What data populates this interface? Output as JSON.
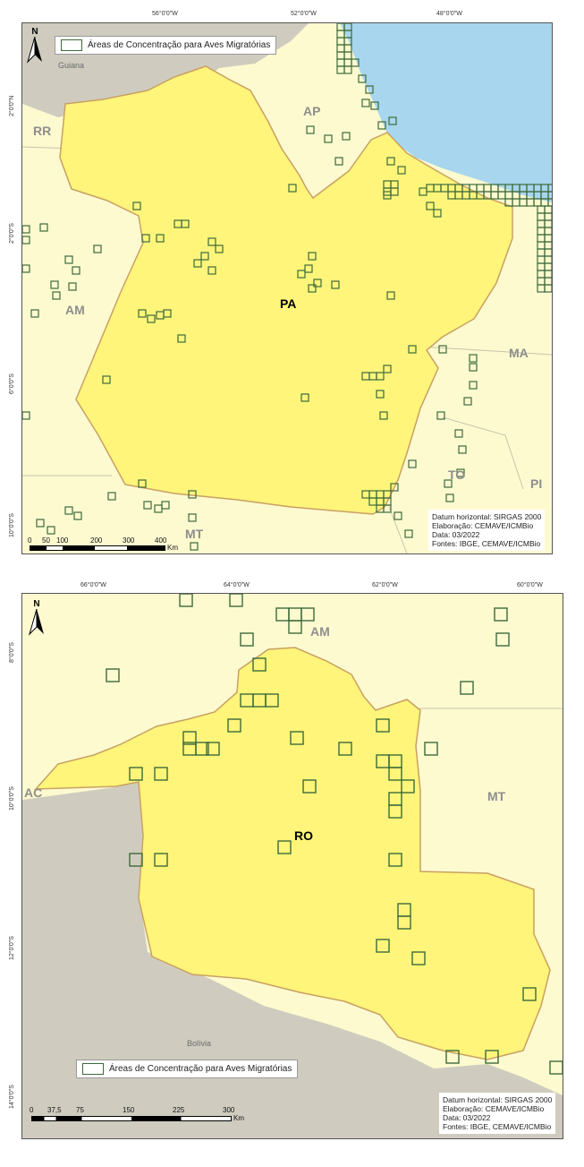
{
  "map1": {
    "ticks_top": [
      "56°0'0\"W",
      "52°0'0\"W",
      "48°0'0\"W"
    ],
    "ticks_left": [
      "2°0'0\"N",
      "2°0'0\"S",
      "6°0'0\"S",
      "10°0'0\"S"
    ],
    "legend_label": "Áreas de Concentração para Aves Migratórias",
    "labels": {
      "guiana": "Guiana",
      "rr": "RR",
      "ap": "AP",
      "am": "AM",
      "pa": "PA",
      "ma": "MA",
      "to": "TO",
      "pi": "PI",
      "mt": "MT"
    },
    "info": [
      "Datum horizontal: SIRGAS 2000",
      "Elaboração: CEMAVE/ICMBio",
      "Data: 03/2022",
      "Fontes: IBGE, CEMAVE/ICMBio"
    ],
    "scale_labels": [
      "0",
      "50",
      "100",
      "200",
      "300",
      "400"
    ],
    "scale_unit": "Km",
    "north": "N"
  },
  "map2": {
    "ticks_top": [
      "66°0'0\"W",
      "64°0'0\"W",
      "62°0'0\"W",
      "60°0'0\"W"
    ],
    "ticks_left": [
      "8°0'0\"S",
      "10°0'0\"S",
      "12°0'0\"S",
      "14°0'0\"S"
    ],
    "legend_label": "Áreas de Concentração para Aves Migratórias",
    "labels": {
      "am": "AM",
      "ac": "AC",
      "mt": "MT",
      "ro": "RO",
      "bolivia": "Bolívia"
    },
    "info": [
      "Datum horizontal: SIRGAS 2000",
      "Elaboração: CEMAVE/ICMBio",
      "Data: 03/2022",
      "Fontes: IBGE, CEMAVE/ICMBio"
    ],
    "scale_labels": [
      "0",
      "37,5",
      "75",
      "150",
      "225",
      "300"
    ],
    "scale_unit": "Km",
    "north": "N"
  },
  "colors": {
    "state_fill": "#fef57a",
    "state_border": "#c9a062",
    "neighbor": "#fdfad0",
    "foreign": "#cfccbf",
    "ocean": "#a7d6ee",
    "grid_cell": "#3e6a3a"
  }
}
